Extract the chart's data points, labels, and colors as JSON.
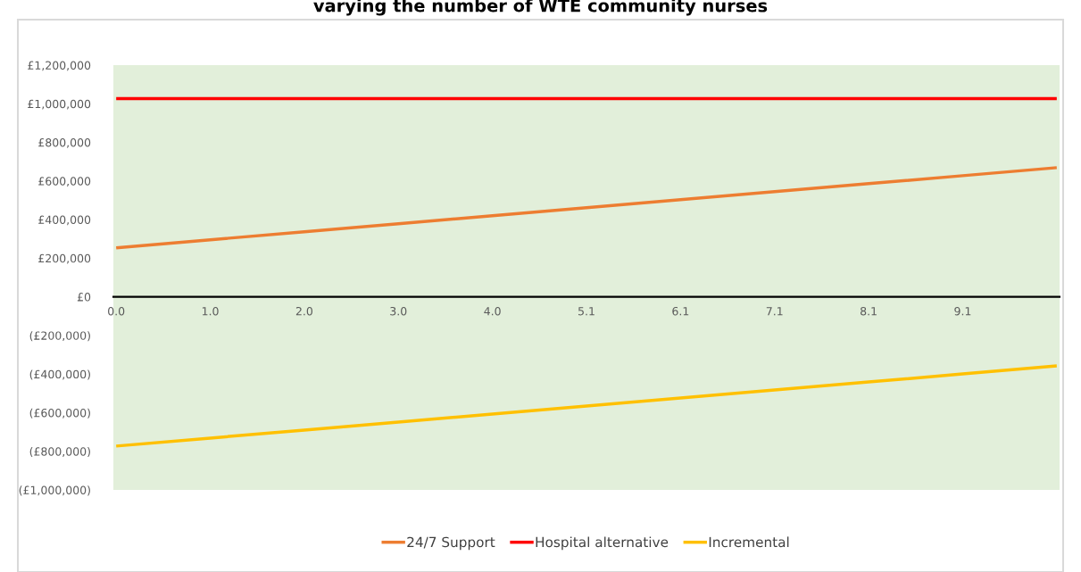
{
  "chart_data": {
    "type": "line",
    "title": "varying the number of WTE community nurses",
    "categories": [
      "0.0",
      "1.0",
      "2.0",
      "3.0",
      "4.0",
      "5.1",
      "6.1",
      "7.1",
      "8.1",
      "9.1",
      null
    ],
    "series": [
      {
        "name": "24/7 Support",
        "color": "#ed7d31",
        "values": [
          254000,
          295500,
          337000,
          378500,
          420000,
          461500,
          503000,
          544500,
          586000,
          627500,
          669000
        ]
      },
      {
        "name": "Hospital alternative",
        "color": "#ff0000",
        "values": [
          1027000,
          1027000,
          1027000,
          1027000,
          1027000,
          1027000,
          1027000,
          1027000,
          1027000,
          1027000,
          1027000
        ]
      },
      {
        "name": "Incremental",
        "color": "#ffc000",
        "values": [
          -773000,
          -731500,
          -690000,
          -648500,
          -607000,
          -565500,
          -524000,
          -482500,
          -441000,
          -399500,
          -358000
        ]
      }
    ],
    "ylim": [
      -1000000,
      1200000
    ],
    "yticks": [
      {
        "value": -1000000,
        "label": "(£1,000,000)"
      },
      {
        "value": -800000,
        "label": "(£800,000)"
      },
      {
        "value": -600000,
        "label": "(£600,000)"
      },
      {
        "value": -400000,
        "label": "(£400,000)"
      },
      {
        "value": -200000,
        "label": "(£200,000)"
      },
      {
        "value": 0,
        "label": "£0"
      },
      {
        "value": 200000,
        "label": "£200,000"
      },
      {
        "value": 400000,
        "label": "£400,000"
      },
      {
        "value": 600000,
        "label": "£600,000"
      },
      {
        "value": 800000,
        "label": "£800,000"
      },
      {
        "value": 1000000,
        "label": "£1,000,000"
      },
      {
        "value": 1200000,
        "label": "£1,200,000"
      }
    ],
    "grid": false,
    "legend": "bottom",
    "marker": "none",
    "line_style": "solid"
  }
}
